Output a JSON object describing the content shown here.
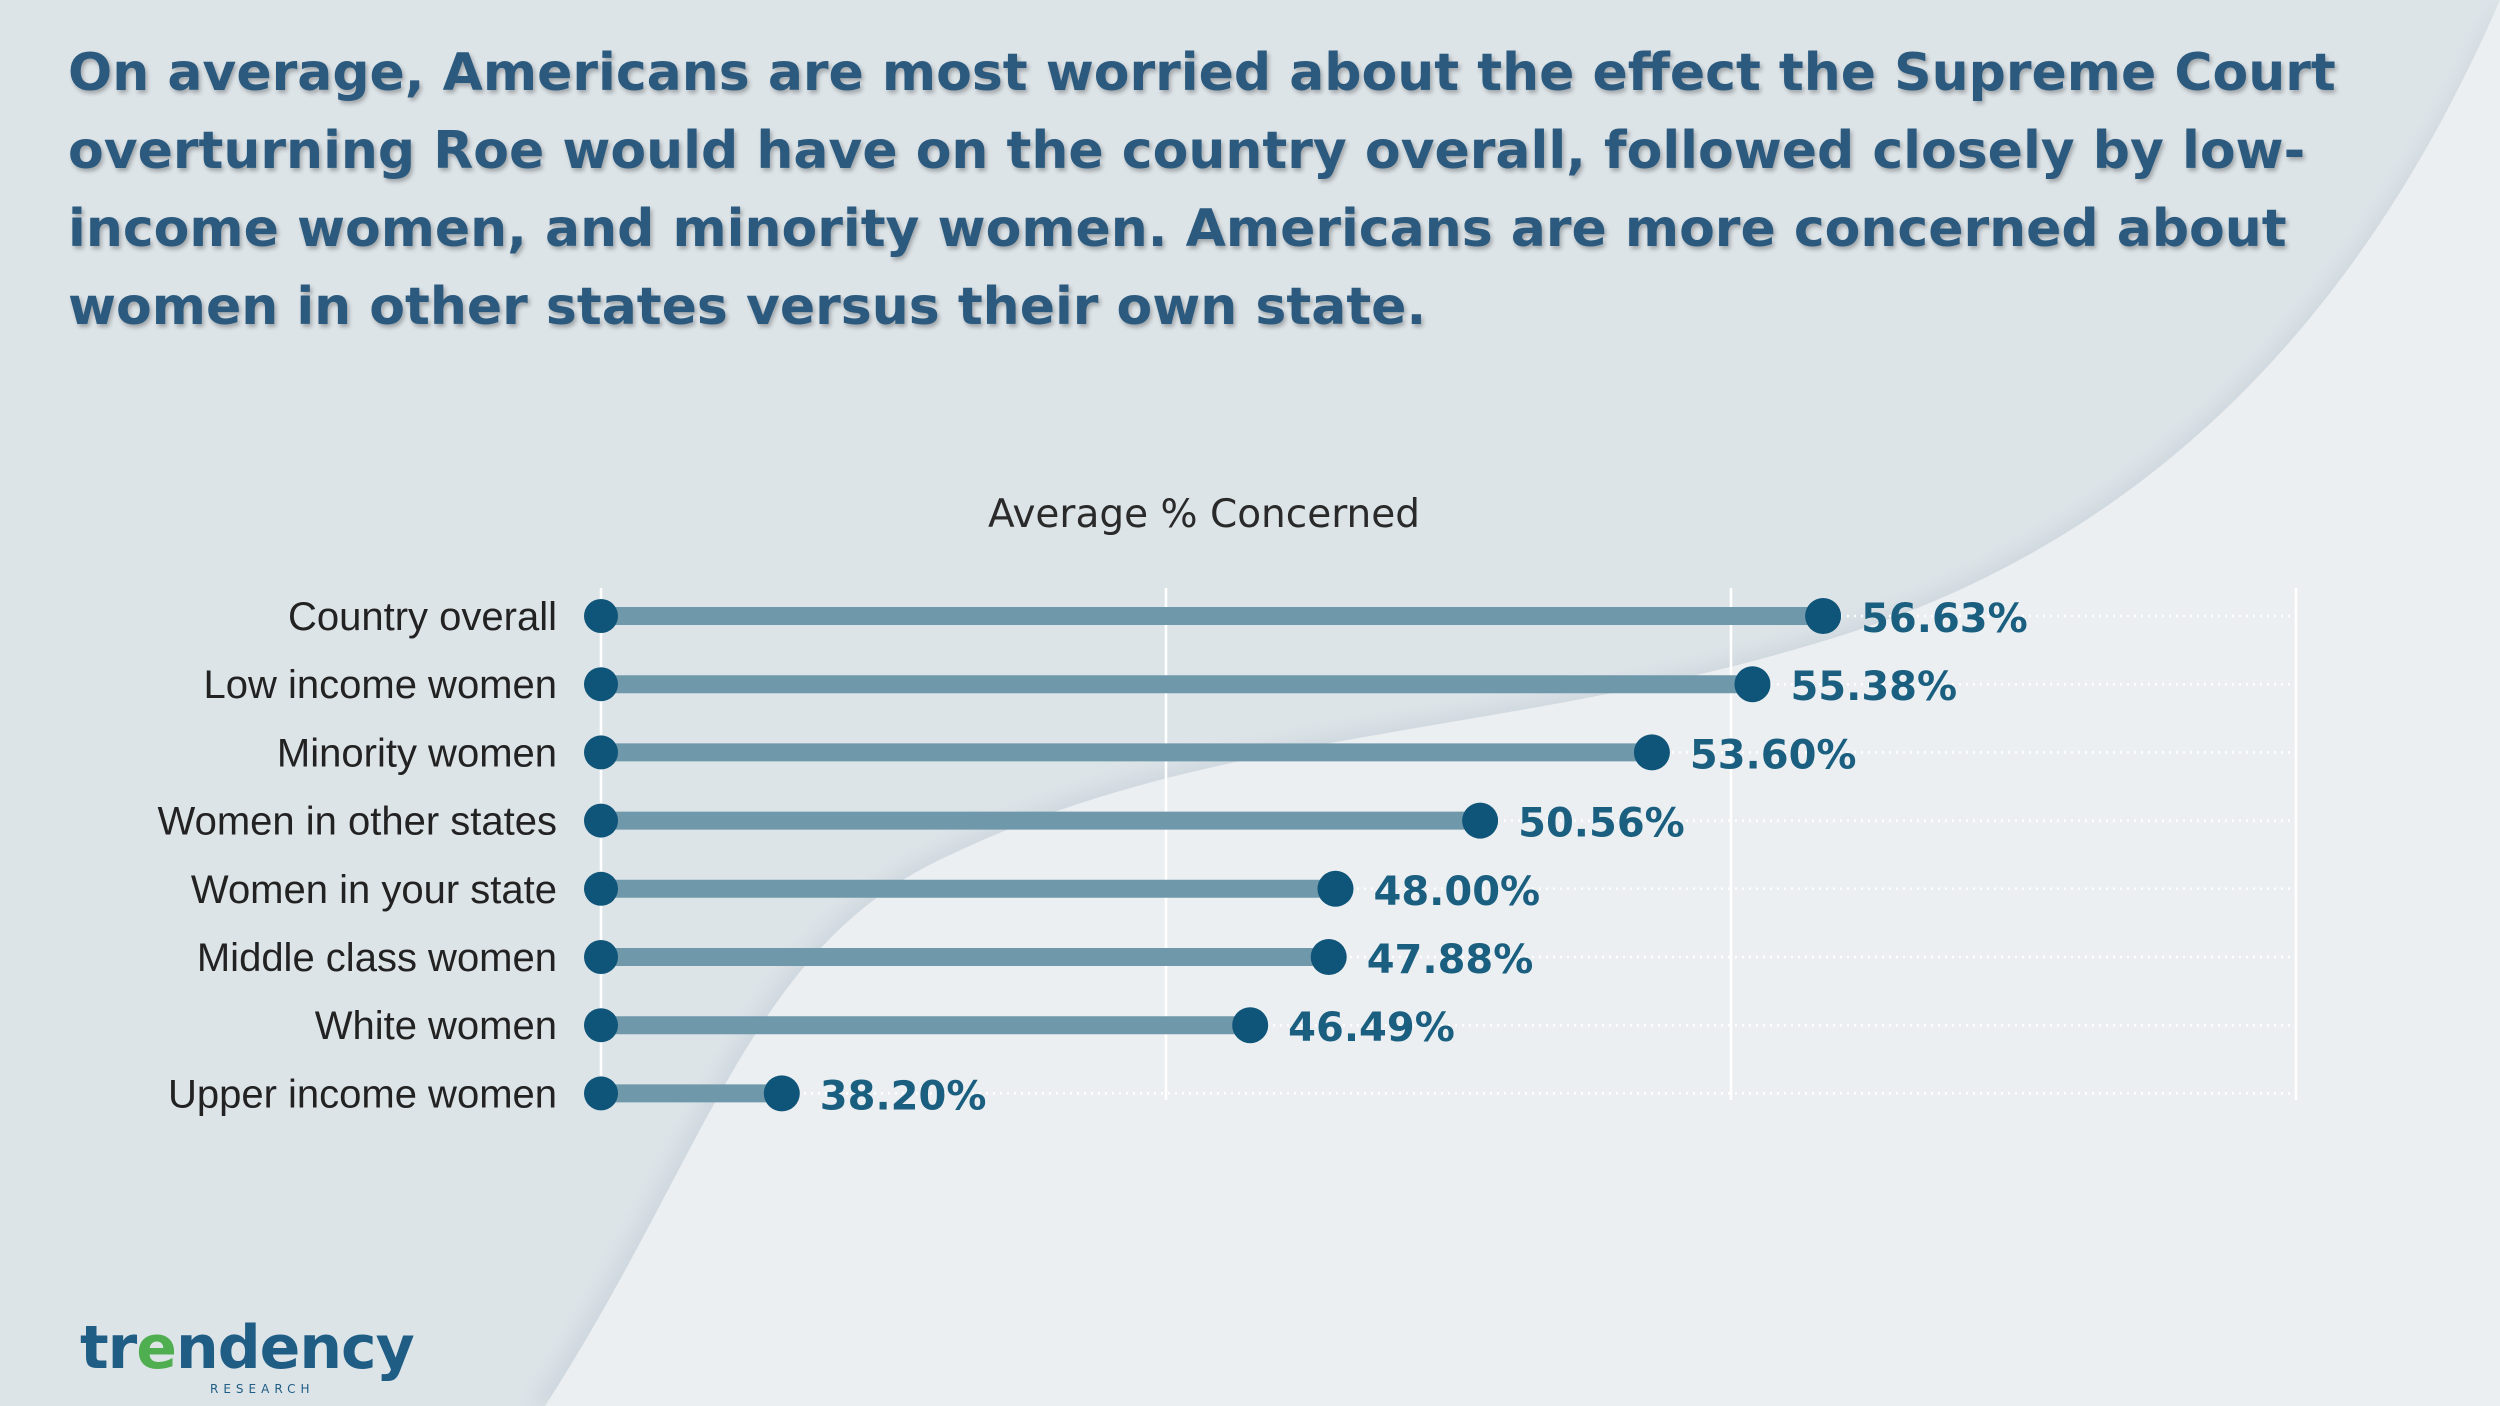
{
  "headline": "On average, Americans are most worried about the effect the Supreme Court overturning Roe would have on the country overall, followed closely by low-income women, and minority women. Americans are more concerned about women in other states versus their own state.",
  "chart_data": {
    "type": "dumbbell",
    "title": "Average % Concerned",
    "categories": [
      "Country overall",
      "Low income women",
      "Minority women",
      "Women in other states",
      "Women in your state",
      "Middle class women",
      "White women",
      "Upper income women"
    ],
    "values": [
      56.63,
      55.38,
      53.6,
      50.56,
      48.0,
      47.88,
      46.49,
      38.2
    ],
    "value_labels": [
      "56.63%",
      "55.38%",
      "53.60%",
      "50.56%",
      "48.00%",
      "47.88%",
      "46.49%",
      "38.20%"
    ],
    "xlim": [
      35,
      65
    ],
    "gridlines": [
      45,
      55,
      65
    ],
    "series_color": "#0f5479",
    "bar_color": "#6f98ab",
    "label_color": "#1a5f80"
  },
  "logo": {
    "prefix": "tr",
    "accent": "e",
    "suffix": "ndency",
    "sub": "RESEARCH"
  }
}
